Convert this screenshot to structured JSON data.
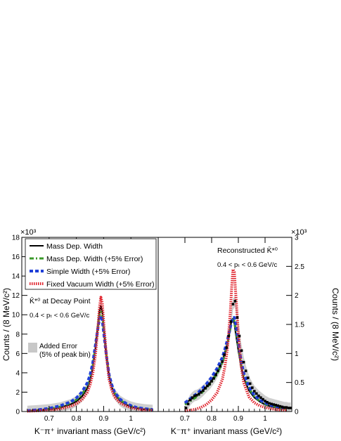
{
  "chart_data": [
    {
      "type": "line",
      "panel": "left",
      "title": "",
      "xlabel": "K⁻π⁺ invariant mass (GeV/c²)",
      "ylabel": "Counts / (8 MeV/c²)",
      "y_multiplier": "×10³",
      "xlim": [
        0.6,
        1.1
      ],
      "ylim": [
        0,
        18
      ],
      "xticks": [
        "0.7",
        "0.8",
        "0.9",
        "1"
      ],
      "yticks": [
        "0",
        "2",
        "4",
        "6",
        "8",
        "10",
        "12",
        "14",
        "16",
        "18"
      ],
      "legend": [
        {
          "label": "Mass Dep. Width",
          "style": "solid",
          "color": "#000000"
        },
        {
          "label": "Mass Dep. Width (+5% Error)",
          "style": "dashdot",
          "color": "#3a9a2a"
        },
        {
          "label": "Simple Width (+5% Error)",
          "style": "dashed",
          "color": "#1f3fd8"
        },
        {
          "label": "Fixed Vacuum Width (+5% Error)",
          "style": "dotted",
          "color": "#e0202a"
        }
      ],
      "annotations": {
        "particle": "K̄*⁰ at Decay Point",
        "pt_range": "0.4 < pₜ < 0.6 GeV/c",
        "error_box_label_1": "Added Error",
        "error_box_label_2": "(5% of peak bin)"
      },
      "x": [
        0.62,
        0.66,
        0.7,
        0.74,
        0.78,
        0.8,
        0.82,
        0.84,
        0.85,
        0.86,
        0.87,
        0.88,
        0.885,
        0.89,
        0.895,
        0.9,
        0.91,
        0.92,
        0.93,
        0.94,
        0.96,
        0.98,
        1.0,
        1.02,
        1.05,
        1.08
      ],
      "series": [
        {
          "name": "Mass Dep. Width",
          "values": [
            0.05,
            0.12,
            0.22,
            0.4,
            0.75,
            1.05,
            1.55,
            2.4,
            3.2,
            4.5,
            6.6,
            9.2,
            10.4,
            10.9,
            10.3,
            8.8,
            5.8,
            3.6,
            2.5,
            1.8,
            1.1,
            0.75,
            0.5,
            0.35,
            0.22,
            0.15
          ]
        },
        {
          "name": "Mass Dep. Width (+5% Error)",
          "values": [
            0.06,
            0.14,
            0.26,
            0.48,
            0.88,
            1.22,
            1.75,
            2.65,
            3.45,
            4.75,
            6.8,
            9.0,
            9.95,
            10.3,
            9.8,
            8.5,
            5.8,
            3.7,
            2.6,
            1.9,
            1.2,
            0.82,
            0.56,
            0.4,
            0.26,
            0.18
          ]
        },
        {
          "name": "Simple Width (+5% Error)",
          "values": [
            0.08,
            0.18,
            0.32,
            0.58,
            1.0,
            1.4,
            2.0,
            2.95,
            3.75,
            5.0,
            6.9,
            8.8,
            9.6,
            9.9,
            9.4,
            8.2,
            5.8,
            3.8,
            2.75,
            2.0,
            1.28,
            0.88,
            0.6,
            0.42,
            0.28,
            0.2
          ]
        },
        {
          "name": "Fixed Vacuum Width (+5% Error)",
          "values": [
            0.03,
            0.08,
            0.15,
            0.28,
            0.55,
            0.8,
            1.2,
            1.95,
            2.7,
            3.9,
            5.9,
            9.0,
            10.8,
            11.8,
            11.2,
            9.3,
            5.8,
            3.3,
            2.2,
            1.5,
            0.9,
            0.6,
            0.4,
            0.28,
            0.17,
            0.12
          ]
        }
      ]
    },
    {
      "type": "line",
      "panel": "right",
      "title": "",
      "xlabel": "K⁻π⁺ invariant mass (GeV/c²)",
      "ylabel": "Counts / (8 MeV/c²)",
      "y_multiplier": "×10³",
      "xlim": [
        0.6,
        1.1
      ],
      "ylim": [
        0,
        3.0
      ],
      "xticks": [
        "0.7",
        "0.8",
        "0.9",
        "1"
      ],
      "yticks": [
        "0",
        "0.5",
        "1",
        "1.5",
        "2",
        "2.5",
        "3"
      ],
      "annotations": {
        "particle": "Reconstructed K̄*⁰",
        "pt_range": "0.4 < pₜ < 0.6 GeV/c"
      },
      "x": [
        0.7,
        0.72,
        0.74,
        0.76,
        0.78,
        0.8,
        0.82,
        0.84,
        0.85,
        0.86,
        0.87,
        0.875,
        0.88,
        0.885,
        0.89,
        0.9,
        0.91,
        0.92,
        0.94,
        0.96,
        0.98,
        1.0,
        1.02,
        1.05,
        1.08
      ],
      "series": [
        {
          "name": "Mass Dep. Width",
          "values": [
            0.14,
            0.2,
            0.26,
            0.33,
            0.42,
            0.53,
            0.67,
            0.86,
            1.02,
            1.2,
            1.45,
            1.58,
            1.6,
            1.52,
            1.35,
            1.05,
            0.78,
            0.58,
            0.36,
            0.24,
            0.17,
            0.12,
            0.09,
            0.06,
            0.04
          ]
        },
        {
          "name": "Mass Dep. Width (+5% Error)",
          "values": [
            0.12,
            0.18,
            0.24,
            0.31,
            0.4,
            0.51,
            0.65,
            0.84,
            1.0,
            1.18,
            1.42,
            1.55,
            1.6,
            1.56,
            1.42,
            1.1,
            0.82,
            0.62,
            0.39,
            0.26,
            0.18,
            0.13,
            0.1,
            0.07,
            0.05
          ]
        },
        {
          "name": "Simple Width (+5% Error)",
          "values": [
            0.15,
            0.22,
            0.29,
            0.37,
            0.47,
            0.59,
            0.74,
            0.93,
            1.08,
            1.25,
            1.45,
            1.56,
            1.62,
            1.62,
            1.52,
            1.2,
            0.88,
            0.66,
            0.42,
            0.28,
            0.2,
            0.15,
            0.11,
            0.08,
            0.06
          ]
        },
        {
          "name": "Fixed Vacuum Width (+5% Error)",
          "values": [
            0.01,
            0.02,
            0.04,
            0.07,
            0.12,
            0.2,
            0.32,
            0.55,
            0.78,
            1.12,
            1.72,
            2.14,
            2.45,
            2.4,
            2.05,
            1.35,
            0.8,
            0.5,
            0.25,
            0.15,
            0.1,
            0.07,
            0.05,
            0.03,
            0.02
          ]
        }
      ],
      "data_points": {
        "name": "data",
        "x": [
          0.704,
          0.712,
          0.72,
          0.728,
          0.736,
          0.744,
          0.752,
          0.76,
          0.768,
          0.776,
          0.784,
          0.792,
          0.8,
          0.808,
          0.816,
          0.824,
          0.832,
          0.84,
          0.848,
          0.856,
          0.864,
          0.872,
          0.88,
          0.888,
          0.896,
          0.904,
          0.912,
          0.92,
          0.928,
          0.936,
          0.944,
          0.952,
          0.96,
          0.968,
          0.976,
          0.984,
          0.992,
          1.0,
          1.008,
          1.016,
          1.024,
          1.032,
          1.04,
          1.048,
          1.056,
          1.064,
          1.072,
          1.08,
          1.088,
          1.096
        ],
        "y": [
          0.06,
          0.13,
          0.2,
          0.24,
          0.27,
          0.28,
          0.3,
          0.33,
          0.36,
          0.4,
          0.44,
          0.47,
          0.52,
          0.57,
          0.63,
          0.7,
          0.78,
          0.86,
          0.98,
          1.1,
          1.3,
          1.55,
          1.85,
          1.9,
          1.62,
          1.3,
          1.05,
          0.85,
          0.7,
          0.58,
          0.48,
          0.41,
          0.35,
          0.31,
          0.27,
          0.24,
          0.21,
          0.18,
          0.16,
          0.14,
          0.13,
          0.12,
          0.11,
          0.1,
          0.09,
          0.08,
          0.07,
          0.07,
          0.06,
          0.06
        ]
      }
    }
  ]
}
